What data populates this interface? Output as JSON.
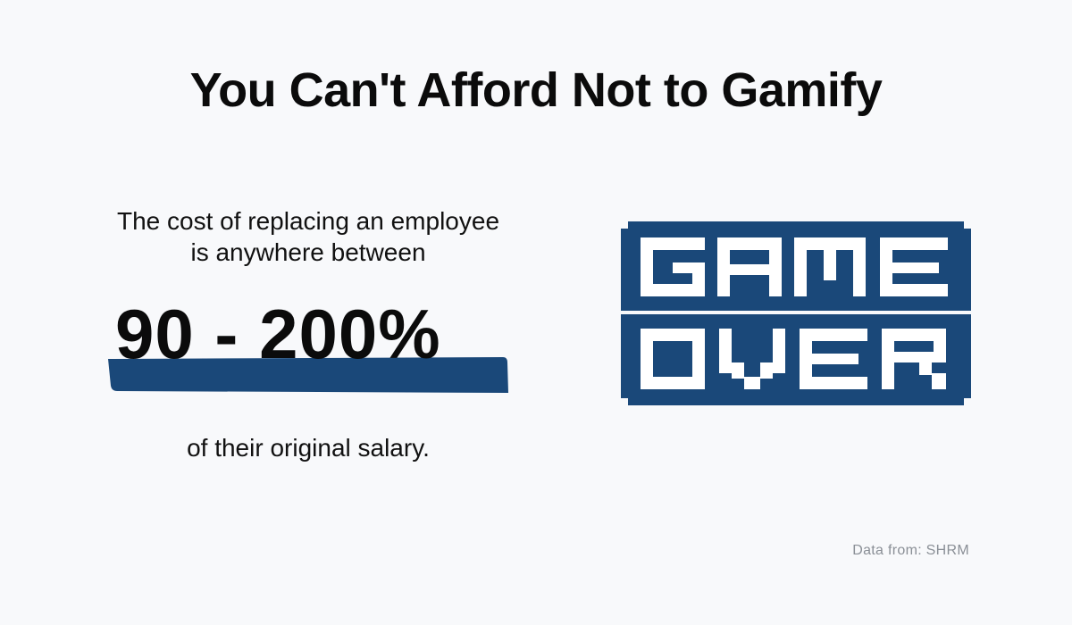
{
  "title": "You Can't Afford Not to Gamify",
  "intro": "The cost of replacing an employee\nis anywhere between",
  "stat": "90 - 200%",
  "outro": "of their original salary.",
  "graphic_text": "GAME OVER",
  "source": "Data from: SHRM",
  "colors": {
    "accent": "#1a4879",
    "background": "#f8f9fb",
    "text": "#0b0b0b",
    "muted": "#8a8f96"
  }
}
